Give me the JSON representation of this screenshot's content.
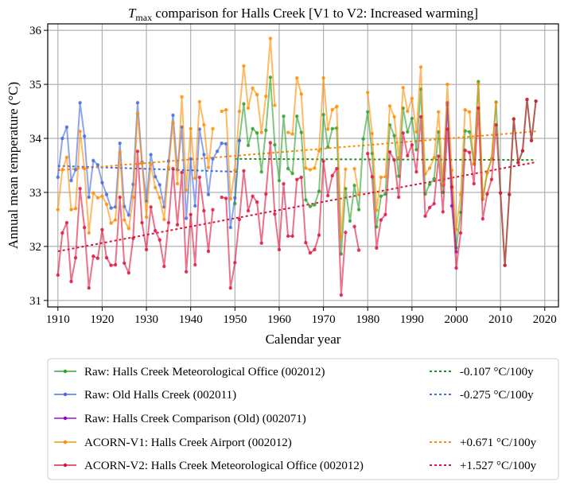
{
  "chart_data": {
    "type": "line",
    "title_symbol": "T",
    "title_subscript": "max",
    "title_rest": " comparison for Halls Creek   [V1 to V2: Increased warming]",
    "xlabel": "Calendar year",
    "ylabel": "Annual mean temperature (°C)",
    "xlim": [
      1907.7,
      2023.1
    ],
    "ylim": [
      30.88,
      36.12
    ],
    "xticks": [
      1910,
      1920,
      1930,
      1940,
      1950,
      1960,
      1970,
      1980,
      1990,
      2000,
      2010,
      2020
    ],
    "yticks": [
      31,
      32,
      33,
      34,
      35,
      36
    ],
    "grid": true,
    "legend_placement": "below",
    "series": [
      {
        "name": "Raw: Halls Creek Meteorological Office (002012)",
        "color": "#2ca02c",
        "start_year": 1950,
        "values": [
          32.79,
          33.96,
          34.64,
          33.87,
          34.18,
          34.1,
          33.38,
          34.15,
          35.13,
          33.88,
          33.22,
          34.41,
          33.44,
          33.35,
          34.41,
          34.11,
          32.86,
          32.74,
          32.77,
          33.02,
          34.44,
          33.84,
          34.18,
          34.19,
          31.86,
          33.07,
          32.47,
          33.13,
          32.68,
          33.99,
          34.49,
          33.72,
          32.36,
          32.93,
          32.97,
          34.25,
          34.05,
          33.3,
          34.56,
          34.12,
          34.37,
          33.79,
          34.91,
          32.97,
          33.15,
          33.25,
          34.12,
          33.0,
          34.62,
          33.1,
          31.97,
          32.63,
          34.14,
          34.12,
          33.53,
          35.05,
          32.88,
          33.37,
          33.62,
          34.67,
          32.99,
          31.65,
          32.96,
          34.36,
          33.55,
          33.77,
          34.72,
          33.96,
          34.69
        ]
      },
      {
        "name": "Raw: Old Halls Creek (002011)",
        "color": "#4169e1",
        "start_year": 1910,
        "values": [
          33.28,
          34.0,
          34.21,
          33.22,
          33.42,
          34.66,
          34.04,
          32.91,
          33.59,
          33.51,
          33.18,
          32.96,
          32.71,
          32.73,
          33.91,
          32.74,
          32.58,
          33.15,
          34.66,
          33.56,
          32.84,
          33.7,
          33.29,
          33.14,
          32.73,
          33.58,
          34.43,
          33.42,
          34.21,
          32.52,
          33.62,
          32.75,
          34.17,
          33.7,
          32.96,
          33.62,
          33.76,
          33.91,
          33.9,
          32.35,
          32.9,
          33.96
        ]
      },
      {
        "name": "Raw: Halls Creek Comparison (Old) (002071)",
        "color": "#9400d3",
        "start_year": 1997,
        "values": [
          33.14,
          34.66,
          32.75,
          31.9
        ]
      },
      {
        "name": "ACORN-V1: Halls Creek Airport (002012)",
        "color": "#ff8c00",
        "start_year": 1910,
        "values": [
          32.68,
          33.42,
          33.65,
          32.68,
          32.7,
          34.13,
          33.44,
          32.25,
          32.99,
          32.9,
          32.93,
          32.78,
          32.43,
          32.49,
          33.74,
          32.49,
          32.33,
          32.91,
          34.46,
          33.54,
          32.54,
          33.52,
          33.09,
          32.9,
          32.5,
          33.46,
          34.29,
          33.16,
          34.77,
          33.04,
          34.18,
          33.26,
          34.68,
          34.25,
          33.46,
          34.18,
          null,
          34.5,
          34.53,
          32.88,
          33.41,
          34.5,
          35.34,
          34.56,
          34.93,
          34.81,
          34.11,
          34.78,
          35.85,
          34.61,
          null,
          null,
          34.11,
          34.08,
          35.12,
          34.82,
          33.45,
          33.42,
          33.45,
          33.77,
          35.12,
          34.17,
          34.53,
          34.59,
          32.18,
          33.43,
          null,
          33.44,
          32.96,
          null,
          34.85,
          34.09,
          32.67,
          33.28,
          33.29,
          34.6,
          34.4,
          33.64,
          34.94,
          34.5,
          34.74,
          34.12,
          35.32,
          33.34,
          33.45,
          33.64,
          34.49,
          33.15,
          35.0,
          33.41,
          32.31,
          32.96,
          34.53,
          34.49,
          33.52,
          35.01,
          32.87,
          33.36,
          33.62,
          34.67
        ]
      },
      {
        "name": "ACORN-V2: Halls Creek Meteorological Office (002012)",
        "color": "#dc143c",
        "start_year": 1910,
        "values": [
          31.47,
          32.25,
          32.44,
          31.35,
          31.79,
          33.07,
          32.35,
          31.23,
          31.82,
          31.78,
          32.31,
          31.79,
          31.65,
          31.66,
          32.91,
          31.69,
          31.51,
          32.15,
          33.76,
          32.44,
          31.94,
          32.73,
          32.29,
          32.12,
          31.63,
          32.44,
          33.44,
          32.4,
          33.37,
          31.53,
          32.59,
          31.66,
          33.28,
          32.66,
          31.91,
          32.68,
          null,
          32.91,
          32.89,
          31.23,
          31.7,
          32.5,
          33.4,
          32.66,
          32.93,
          32.82,
          32.06,
          32.97,
          33.92,
          32.6,
          31.94,
          33.16,
          32.19,
          32.19,
          33.24,
          33.28,
          32.07,
          31.88,
          31.94,
          32.21,
          33.58,
          32.94,
          33.31,
          33.44,
          31.1,
          32.26,
          null,
          32.37,
          31.93,
          null,
          33.72,
          33.29,
          31.97,
          32.49,
          32.59,
          33.75,
          33.6,
          32.91,
          34.1,
          33.68,
          33.88,
          33.38,
          34.4,
          32.56,
          32.72,
          32.79,
          33.67,
          32.64,
          34.17,
          33.1,
          31.6,
          32.25,
          33.78,
          33.74,
          33.16,
          34.56,
          32.51,
          32.97,
          33.24,
          34.25,
          32.99,
          31.65,
          32.96,
          34.36,
          33.55,
          33.77,
          34.72,
          33.96,
          34.69
        ]
      }
    ],
    "trends": [
      {
        "label": "-0.107 °C/100y",
        "color": "#228b22",
        "x": [
          1950,
          2018
        ],
        "y": [
          33.62,
          33.6
        ]
      },
      {
        "label": "-0.275 °C/100y",
        "color": "#4169e1",
        "x": [
          1910,
          1951
        ],
        "y": [
          33.49,
          33.38
        ]
      },
      {
        "label": "+0.671 °C/100y",
        "color": "#ff8c00",
        "x": [
          1910,
          2018
        ],
        "y": [
          33.41,
          34.13
        ]
      },
      {
        "label": "+1.527 °C/100y",
        "color": "#dc143c",
        "x": [
          1910,
          2018
        ],
        "y": [
          31.91,
          33.56
        ]
      }
    ]
  }
}
